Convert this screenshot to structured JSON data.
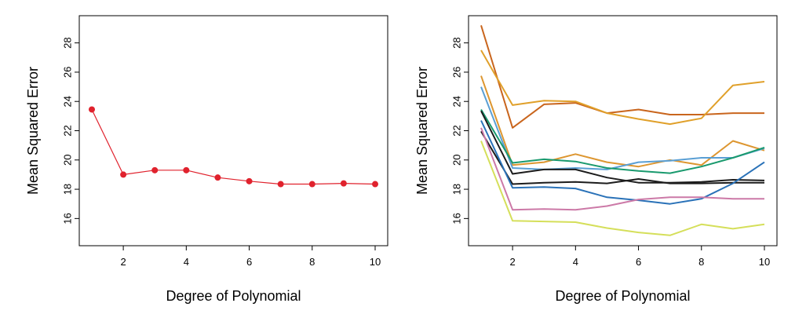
{
  "chart_data": [
    {
      "type": "line",
      "markers": true,
      "title": "",
      "xlabel": "Degree of Polynomial",
      "ylabel": "Mean Squared Error",
      "xlim": [
        1,
        10
      ],
      "ylim": [
        15,
        29
      ],
      "xticks": [
        2,
        4,
        6,
        8,
        10
      ],
      "yticks": [
        16,
        18,
        20,
        22,
        24,
        26,
        28
      ],
      "grid": false,
      "x": [
        1,
        2,
        3,
        4,
        5,
        6,
        7,
        8,
        9,
        10
      ],
      "series": [
        {
          "color": "#e0222d",
          "values": [
            23.45,
            19.0,
            19.3,
            19.3,
            18.8,
            18.55,
            18.35,
            18.35,
            18.4,
            18.35
          ]
        }
      ]
    },
    {
      "type": "line",
      "markers": false,
      "title": "",
      "xlabel": "Degree of Polynomial",
      "ylabel": "Mean Squared Error",
      "xlim": [
        1,
        10
      ],
      "ylim": [
        15,
        29
      ],
      "xticks": [
        2,
        4,
        6,
        8,
        10
      ],
      "yticks": [
        16,
        18,
        20,
        22,
        24,
        26,
        28
      ],
      "grid": false,
      "x": [
        1,
        2,
        3,
        4,
        5,
        6,
        7,
        8,
        9,
        10
      ],
      "series": [
        {
          "color": "#c9651d",
          "values": [
            29.2,
            22.2,
            23.8,
            23.9,
            23.2,
            23.45,
            23.1,
            23.1,
            23.2,
            23.2
          ]
        },
        {
          "color": "#e0a02a",
          "values": [
            27.5,
            23.75,
            24.05,
            24.0,
            23.2,
            22.8,
            22.45,
            22.85,
            25.1,
            25.35
          ]
        },
        {
          "color": "#dd9630",
          "values": [
            25.75,
            19.65,
            19.85,
            20.4,
            19.85,
            19.55,
            20.0,
            19.65,
            21.3,
            20.65
          ]
        },
        {
          "color": "#5a9fd4",
          "values": [
            25.0,
            19.45,
            19.35,
            19.45,
            19.35,
            19.85,
            19.95,
            20.15,
            20.15,
            20.8
          ]
        },
        {
          "color": "#1a9a6e",
          "values": [
            23.45,
            19.8,
            20.05,
            19.9,
            19.45,
            19.25,
            19.1,
            19.55,
            20.15,
            20.85
          ]
        },
        {
          "color": "#1c1c1c",
          "values": [
            23.35,
            19.05,
            19.35,
            19.35,
            18.8,
            18.45,
            18.45,
            18.5,
            18.65,
            18.6
          ]
        },
        {
          "color": "#1c1c1c",
          "values": [
            21.95,
            18.35,
            18.45,
            18.5,
            18.4,
            18.7,
            18.4,
            18.4,
            18.45,
            18.45
          ]
        },
        {
          "color": "#2a72b8",
          "values": [
            22.7,
            18.1,
            18.15,
            18.05,
            17.45,
            17.25,
            17.0,
            17.35,
            18.4,
            19.85
          ]
        },
        {
          "color": "#cc79a7",
          "values": [
            22.2,
            16.6,
            16.65,
            16.6,
            16.85,
            17.3,
            17.45,
            17.45,
            17.35,
            17.35
          ]
        },
        {
          "color": "#d5df5a",
          "values": [
            21.3,
            15.85,
            15.8,
            15.75,
            15.35,
            15.05,
            14.85,
            15.6,
            15.3,
            15.6
          ]
        }
      ]
    }
  ]
}
